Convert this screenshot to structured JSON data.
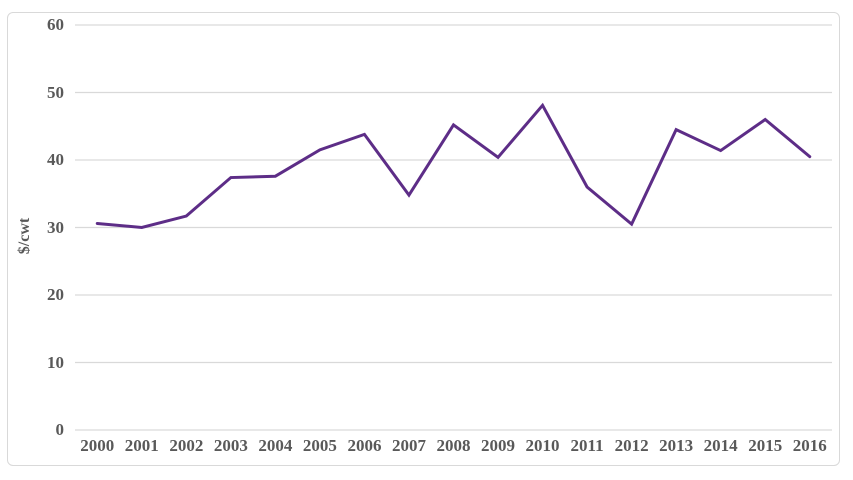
{
  "chart_data": {
    "type": "line",
    "title": "",
    "xlabel": "",
    "ylabel": "$/cwt",
    "categories": [
      "2000",
      "2001",
      "2002",
      "2003",
      "2004",
      "2005",
      "2006",
      "2007",
      "2008",
      "2009",
      "2010",
      "2011",
      "2012",
      "2013",
      "2014",
      "2015",
      "2016"
    ],
    "values": [
      30.6,
      30.0,
      31.7,
      37.4,
      37.6,
      41.5,
      43.8,
      34.8,
      45.2,
      40.4,
      48.1,
      36.0,
      30.5,
      44.5,
      41.4,
      46.0,
      40.5
    ],
    "ylim": [
      0,
      60
    ],
    "yticks": [
      0,
      10,
      20,
      30,
      40,
      50,
      60
    ],
    "grid": true,
    "legend": "none",
    "colors": {
      "line": "#5D2D87",
      "grid": "#D9D9D9",
      "axis_text": "#595959",
      "frame_border": "#D9D9D9",
      "background": "#FFFFFF"
    }
  }
}
